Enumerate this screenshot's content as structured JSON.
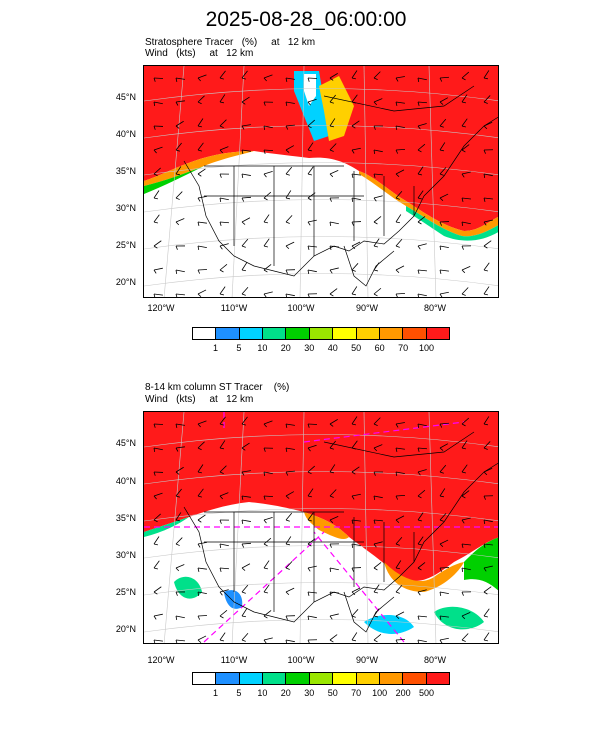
{
  "title": "2025-08-28_06:00:00",
  "panel1": {
    "subtitle1": "Stratosphere Tracer   (%)     at   12 km",
    "subtitle2": "Wind   (kts)     at   12 km",
    "colorbar": {
      "colors": [
        "#ffffff",
        "#1e90ff",
        "#00d2ff",
        "#00e08a",
        "#00d000",
        "#9ae600",
        "#ffff00",
        "#ffd000",
        "#ff9900",
        "#ff5000",
        "#ff1a1a"
      ],
      "labels": [
        "1",
        "5",
        "10",
        "20",
        "30",
        "40",
        "50",
        "60",
        "70",
        "100"
      ]
    }
  },
  "panel2": {
    "subtitle1": "8-14 km column ST Tracer    (%)",
    "subtitle2": "Wind   (kts)     at   12 km",
    "colorbar": {
      "colors": [
        "#ffffff",
        "#1e90ff",
        "#00d2ff",
        "#00e08a",
        "#00d000",
        "#9ae600",
        "#ffff00",
        "#ffd000",
        "#ff9900",
        "#ff5000",
        "#ff1a1a"
      ],
      "labels": [
        "1",
        "5",
        "10",
        "20",
        "30",
        "50",
        "70",
        "100",
        "200",
        "500"
      ]
    }
  },
  "axes": {
    "lat_labels": [
      "45°N",
      "40°N",
      "35°N",
      "30°N",
      "25°N",
      "20°N"
    ],
    "lon_labels": [
      "120°W",
      "110°W",
      "100°W",
      "90°W",
      "80°W"
    ]
  },
  "chart_data": [
    {
      "type": "heatmap",
      "title": "Stratosphere Tracer   (%)     at   12 km",
      "subtitle": "Wind   (kts)     at   12 km",
      "xlabel": "",
      "ylabel": "",
      "x_ticks": [
        "120°W",
        "110°W",
        "100°W",
        "90°W",
        "80°W"
      ],
      "y_ticks": [
        "45°N",
        "40°N",
        "35°N",
        "30°N",
        "25°N",
        "20°N"
      ],
      "levels": [
        1,
        5,
        10,
        20,
        30,
        40,
        50,
        60,
        70,
        100
      ],
      "description_values": {
        "north_of_35N": 100,
        "south_of_30N": 0
      }
    },
    {
      "type": "heatmap",
      "title": "8-14 km column ST Tracer    (%)",
      "subtitle": "Wind   (kts)     at   12 km",
      "xlabel": "",
      "ylabel": "",
      "x_ticks": [
        "120°W",
        "110°W",
        "100°W",
        "90°W",
        "80°W"
      ],
      "y_ticks": [
        "45°N",
        "40°N",
        "35°N",
        "30°N",
        "25°N",
        "20°N"
      ],
      "levels": [
        1,
        5,
        10,
        20,
        30,
        50,
        70,
        100,
        200,
        500
      ],
      "description_values": {
        "north_of_35N": 500,
        "south_of_25N": 0
      }
    }
  ]
}
